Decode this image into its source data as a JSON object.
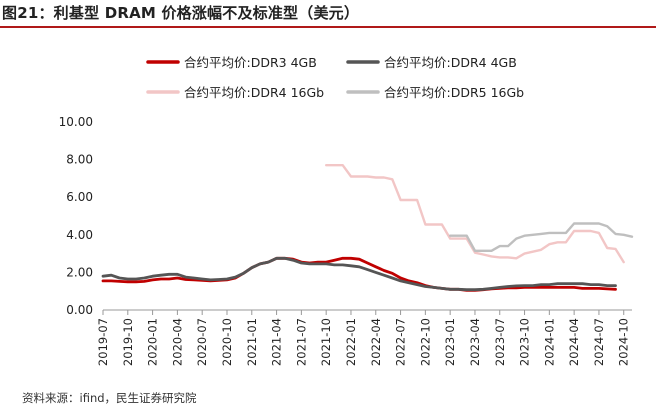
{
  "title": "图21：利基型 DRAM 价格涨幅不及标准型（美元）",
  "source": "资料来源：ifind，民生证券研究院",
  "chart_data": {
    "type": "line",
    "title": "",
    "xlabel": "",
    "ylabel": "",
    "ylim": [
      0,
      10
    ],
    "yticks": [
      "0.00",
      "2.00",
      "4.00",
      "6.00",
      "8.00",
      "10.00"
    ],
    "xticks": [
      "2019-07",
      "2019-10",
      "2020-01",
      "2020-04",
      "2020-07",
      "2020-10",
      "2021-01",
      "2021-04",
      "2021-07",
      "2021-10",
      "2022-01",
      "2022-04",
      "2022-07",
      "2022-10",
      "2023-01",
      "2023-04",
      "2023-07",
      "2023-10",
      "2024-01",
      "2024-04",
      "2024-07",
      "2024-10"
    ],
    "legend_position": "top",
    "series": [
      {
        "name": "合约平均价:DDR3 4GB",
        "color": "#c00000",
        "width": 2.8,
        "points": [
          [
            0,
            1.55
          ],
          [
            1,
            1.55
          ],
          [
            2,
            1.52
          ],
          [
            3,
            1.5
          ],
          [
            4,
            1.5
          ],
          [
            5,
            1.52
          ],
          [
            6,
            1.6
          ],
          [
            7,
            1.65
          ],
          [
            8,
            1.65
          ],
          [
            9,
            1.7
          ],
          [
            10,
            1.62
          ],
          [
            11,
            1.6
          ],
          [
            12,
            1.58
          ],
          [
            13,
            1.55
          ],
          [
            14,
            1.58
          ],
          [
            15,
            1.6
          ],
          [
            16,
            1.7
          ],
          [
            17,
            1.95
          ],
          [
            18,
            2.25
          ],
          [
            19,
            2.45
          ],
          [
            20,
            2.55
          ],
          [
            21,
            2.75
          ],
          [
            22,
            2.75
          ],
          [
            23,
            2.7
          ],
          [
            24,
            2.55
          ],
          [
            25,
            2.5
          ],
          [
            26,
            2.55
          ],
          [
            27,
            2.55
          ],
          [
            28,
            2.65
          ],
          [
            29,
            2.75
          ],
          [
            30,
            2.75
          ],
          [
            31,
            2.7
          ],
          [
            32,
            2.5
          ],
          [
            33,
            2.3
          ],
          [
            34,
            2.1
          ],
          [
            35,
            1.95
          ],
          [
            36,
            1.7
          ],
          [
            37,
            1.55
          ],
          [
            38,
            1.45
          ],
          [
            39,
            1.3
          ],
          [
            40,
            1.2
          ],
          [
            41,
            1.15
          ],
          [
            42,
            1.1
          ],
          [
            43,
            1.1
          ],
          [
            44,
            1.05
          ],
          [
            45,
            1.05
          ],
          [
            46,
            1.08
          ],
          [
            47,
            1.12
          ],
          [
            48,
            1.15
          ],
          [
            49,
            1.18
          ],
          [
            50,
            1.18
          ],
          [
            51,
            1.2
          ],
          [
            52,
            1.2
          ],
          [
            53,
            1.2
          ],
          [
            54,
            1.2
          ],
          [
            55,
            1.2
          ],
          [
            56,
            1.2
          ],
          [
            57,
            1.2
          ],
          [
            58,
            1.15
          ],
          [
            59,
            1.15
          ],
          [
            60,
            1.15
          ],
          [
            61,
            1.12
          ],
          [
            62,
            1.1
          ]
        ]
      },
      {
        "name": "合约平均价:DDR4 4GB",
        "color": "#555555",
        "width": 2.8,
        "points": [
          [
            0,
            1.8
          ],
          [
            1,
            1.85
          ],
          [
            2,
            1.7
          ],
          [
            3,
            1.65
          ],
          [
            4,
            1.65
          ],
          [
            5,
            1.7
          ],
          [
            6,
            1.8
          ],
          [
            7,
            1.85
          ],
          [
            8,
            1.9
          ],
          [
            9,
            1.9
          ],
          [
            10,
            1.75
          ],
          [
            11,
            1.7
          ],
          [
            12,
            1.65
          ],
          [
            13,
            1.6
          ],
          [
            14,
            1.62
          ],
          [
            15,
            1.65
          ],
          [
            16,
            1.75
          ],
          [
            17,
            1.95
          ],
          [
            18,
            2.25
          ],
          [
            19,
            2.45
          ],
          [
            20,
            2.55
          ],
          [
            21,
            2.75
          ],
          [
            22,
            2.75
          ],
          [
            23,
            2.65
          ],
          [
            24,
            2.5
          ],
          [
            25,
            2.45
          ],
          [
            26,
            2.45
          ],
          [
            27,
            2.45
          ],
          [
            28,
            2.4
          ],
          [
            29,
            2.4
          ],
          [
            30,
            2.35
          ],
          [
            31,
            2.3
          ],
          [
            32,
            2.15
          ],
          [
            33,
            2.0
          ],
          [
            34,
            1.85
          ],
          [
            35,
            1.7
          ],
          [
            36,
            1.55
          ],
          [
            37,
            1.45
          ],
          [
            38,
            1.35
          ],
          [
            39,
            1.25
          ],
          [
            40,
            1.2
          ],
          [
            41,
            1.15
          ],
          [
            42,
            1.1
          ],
          [
            43,
            1.1
          ],
          [
            44,
            1.08
          ],
          [
            45,
            1.08
          ],
          [
            46,
            1.1
          ],
          [
            47,
            1.15
          ],
          [
            48,
            1.2
          ],
          [
            49,
            1.25
          ],
          [
            50,
            1.28
          ],
          [
            51,
            1.3
          ],
          [
            52,
            1.3
          ],
          [
            53,
            1.35
          ],
          [
            54,
            1.35
          ],
          [
            55,
            1.4
          ],
          [
            56,
            1.4
          ],
          [
            57,
            1.4
          ],
          [
            58,
            1.4
          ],
          [
            59,
            1.35
          ],
          [
            60,
            1.35
          ],
          [
            61,
            1.3
          ],
          [
            62,
            1.3
          ]
        ]
      },
      {
        "name": "合约平均价:DDR4 16Gb",
        "color": "#f2c6c6",
        "width": 2.4,
        "points": [
          [
            27,
            7.7
          ],
          [
            28,
            7.7
          ],
          [
            29,
            7.7
          ],
          [
            30,
            7.1
          ],
          [
            31,
            7.1
          ],
          [
            32,
            7.1
          ],
          [
            33,
            7.05
          ],
          [
            34,
            7.05
          ],
          [
            35,
            6.95
          ],
          [
            36,
            5.85
          ],
          [
            37,
            5.85
          ],
          [
            38,
            5.85
          ],
          [
            39,
            4.55
          ],
          [
            40,
            4.55
          ],
          [
            41,
            4.55
          ],
          [
            42,
            3.8
          ],
          [
            43,
            3.8
          ],
          [
            44,
            3.8
          ],
          [
            45,
            3.05
          ],
          [
            46,
            2.95
          ],
          [
            47,
            2.85
          ],
          [
            48,
            2.8
          ],
          [
            49,
            2.8
          ],
          [
            50,
            2.75
          ],
          [
            51,
            3.0
          ],
          [
            52,
            3.1
          ],
          [
            53,
            3.2
          ],
          [
            54,
            3.5
          ],
          [
            55,
            3.6
          ],
          [
            56,
            3.6
          ],
          [
            57,
            4.2
          ],
          [
            58,
            4.2
          ],
          [
            59,
            4.2
          ],
          [
            60,
            4.1
          ],
          [
            61,
            3.3
          ],
          [
            62,
            3.25
          ],
          [
            63,
            2.55
          ]
        ]
      },
      {
        "name": "合约平均价:DDR5 16Gb",
        "color": "#bfbfbf",
        "width": 2.4,
        "points": [
          [
            42,
            3.95
          ],
          [
            43,
            3.95
          ],
          [
            44,
            3.95
          ],
          [
            45,
            3.15
          ],
          [
            46,
            3.15
          ],
          [
            47,
            3.15
          ],
          [
            48,
            3.4
          ],
          [
            49,
            3.4
          ],
          [
            50,
            3.8
          ],
          [
            51,
            3.95
          ],
          [
            52,
            4.0
          ],
          [
            53,
            4.05
          ],
          [
            54,
            4.1
          ],
          [
            55,
            4.1
          ],
          [
            56,
            4.1
          ],
          [
            57,
            4.6
          ],
          [
            58,
            4.6
          ],
          [
            59,
            4.6
          ],
          [
            60,
            4.6
          ],
          [
            61,
            4.45
          ],
          [
            62,
            4.05
          ],
          [
            63,
            4.0
          ],
          [
            64,
            3.9
          ]
        ]
      }
    ]
  }
}
